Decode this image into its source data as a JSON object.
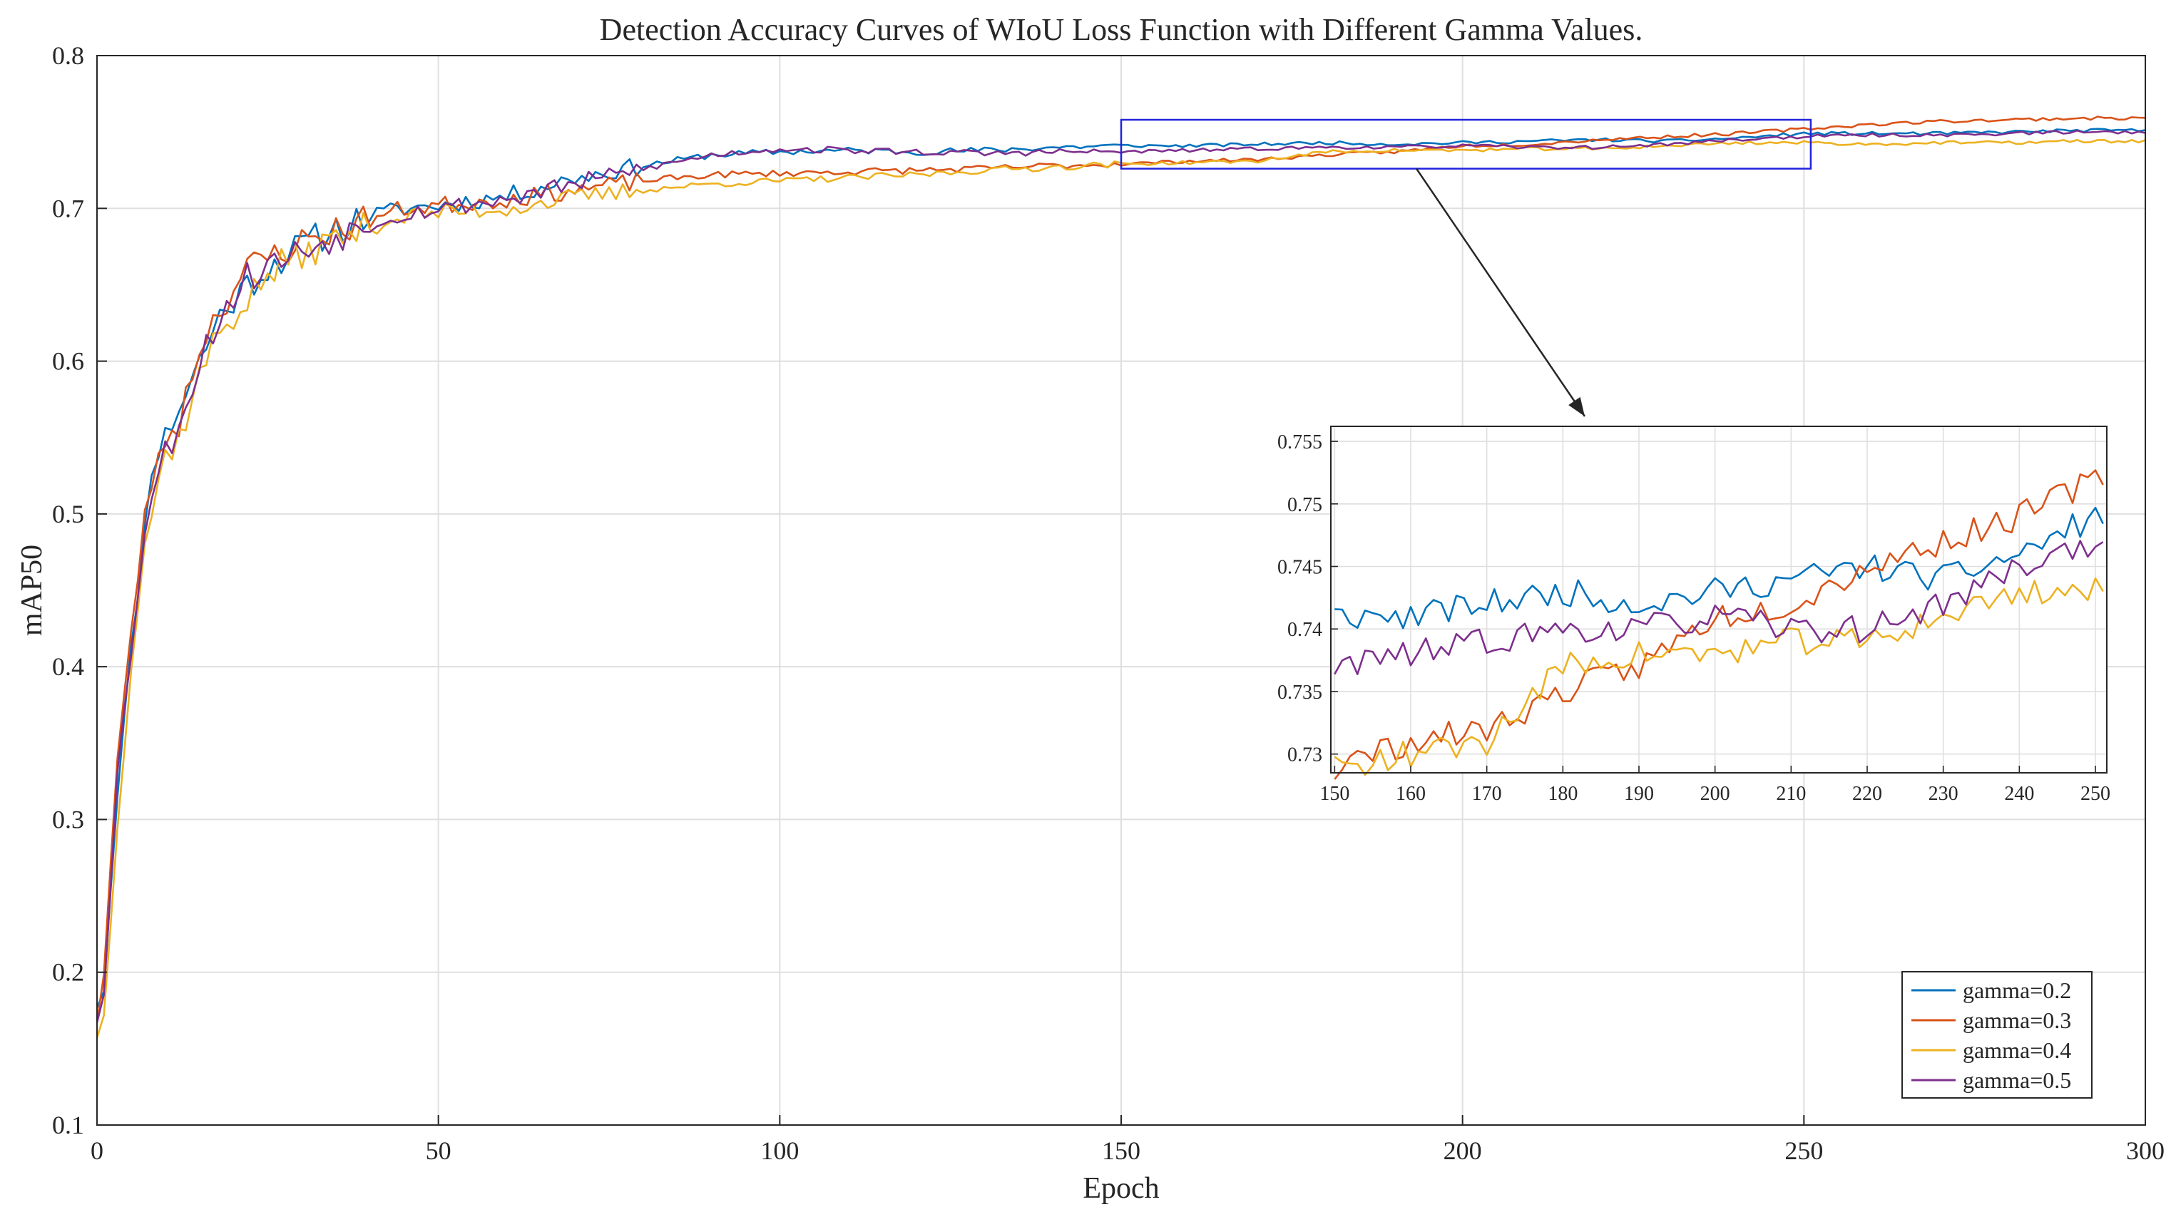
{
  "chart_data": [
    {
      "id": "main",
      "type": "line",
      "title": "Detection Accuracy Curves of WIoU Loss Function with Different Gamma Values.",
      "xlabel": "Epoch",
      "ylabel": "mAP50",
      "xlim": [
        0,
        300
      ],
      "ylim": [
        0.1,
        0.8
      ],
      "xticks": [
        0,
        50,
        100,
        150,
        200,
        250,
        300
      ],
      "xtick_labels": [
        "0",
        "50",
        "100",
        "150",
        "200",
        "250",
        "300"
      ],
      "yticks": [
        0.1,
        0.2,
        0.3,
        0.4,
        0.5,
        0.6,
        0.7,
        0.8
      ],
      "ytick_labels": [
        "0.1",
        "0.2",
        "0.3",
        "0.4",
        "0.5",
        "0.6",
        "0.7",
        "0.8"
      ],
      "grid": true,
      "legend_position": "bottom-right",
      "zoom_box": {
        "x": [
          150,
          251
        ],
        "y": [
          0.726,
          0.758
        ]
      },
      "series": [
        {
          "name": "gamma=0.2",
          "color": "#0072BD",
          "seed": 11,
          "anchors": [
            [
              0,
              0.18
            ],
            [
              1,
              0.19
            ],
            [
              3,
              0.32
            ],
            [
              5,
              0.41
            ],
            [
              7,
              0.49
            ],
            [
              8,
              0.53
            ],
            [
              10,
              0.55
            ],
            [
              12,
              0.57
            ],
            [
              15,
              0.6
            ],
            [
              18,
              0.63
            ],
            [
              22,
              0.65
            ],
            [
              26,
              0.665
            ],
            [
              30,
              0.675
            ],
            [
              35,
              0.687
            ],
            [
              40,
              0.695
            ],
            [
              45,
              0.7
            ],
            [
              50,
              0.702
            ],
            [
              60,
              0.708
            ],
            [
              70,
              0.72
            ],
            [
              80,
              0.728
            ],
            [
              90,
              0.735
            ],
            [
              100,
              0.737
            ],
            [
              110,
              0.738
            ],
            [
              120,
              0.737
            ],
            [
              130,
              0.738
            ],
            [
              140,
              0.74
            ],
            [
              150,
              0.741
            ],
            [
              160,
              0.741
            ],
            [
              170,
              0.742
            ],
            [
              180,
              0.743
            ],
            [
              190,
              0.742
            ],
            [
              200,
              0.743
            ],
            [
              210,
              0.744
            ],
            [
              220,
              0.745
            ],
            [
              230,
              0.744
            ],
            [
              240,
              0.746
            ],
            [
              250,
              0.749
            ],
            [
              260,
              0.749
            ],
            [
              270,
              0.749
            ],
            [
              280,
              0.75
            ],
            [
              290,
              0.751
            ],
            [
              300,
              0.751
            ]
          ]
        },
        {
          "name": "gamma=0.3",
          "color": "#D95319",
          "seed": 23,
          "anchors": [
            [
              0,
              0.17
            ],
            [
              1,
              0.2
            ],
            [
              3,
              0.34
            ],
            [
              5,
              0.42
            ],
            [
              7,
              0.5
            ],
            [
              8,
              0.52
            ],
            [
              10,
              0.55
            ],
            [
              12,
              0.56
            ],
            [
              15,
              0.61
            ],
            [
              18,
              0.635
            ],
            [
              22,
              0.66
            ],
            [
              26,
              0.67
            ],
            [
              30,
              0.678
            ],
            [
              35,
              0.686
            ],
            [
              40,
              0.693
            ],
            [
              45,
              0.7
            ],
            [
              50,
              0.702
            ],
            [
              60,
              0.706
            ],
            [
              70,
              0.712
            ],
            [
              80,
              0.718
            ],
            [
              90,
              0.722
            ],
            [
              100,
              0.723
            ],
            [
              110,
              0.724
            ],
            [
              120,
              0.725
            ],
            [
              130,
              0.726
            ],
            [
              140,
              0.728
            ],
            [
              150,
              0.729
            ],
            [
              160,
              0.731
            ],
            [
              170,
              0.732
            ],
            [
              180,
              0.735
            ],
            [
              190,
              0.737
            ],
            [
              200,
              0.741
            ],
            [
              210,
              0.742
            ],
            [
              220,
              0.745
            ],
            [
              230,
              0.747
            ],
            [
              240,
              0.749
            ],
            [
              250,
              0.752
            ],
            [
              260,
              0.755
            ],
            [
              270,
              0.757
            ],
            [
              280,
              0.758
            ],
            [
              290,
              0.759
            ],
            [
              300,
              0.759
            ]
          ]
        },
        {
          "name": "gamma=0.4",
          "color": "#EDB120",
          "seed": 37,
          "anchors": [
            [
              0,
              0.16
            ],
            [
              1,
              0.17
            ],
            [
              3,
              0.3
            ],
            [
              5,
              0.4
            ],
            [
              7,
              0.48
            ],
            [
              8,
              0.5
            ],
            [
              10,
              0.54
            ],
            [
              12,
              0.55
            ],
            [
              15,
              0.59
            ],
            [
              18,
              0.62
            ],
            [
              22,
              0.64
            ],
            [
              26,
              0.66
            ],
            [
              30,
              0.67
            ],
            [
              35,
              0.68
            ],
            [
              40,
              0.688
            ],
            [
              45,
              0.695
            ],
            [
              50,
              0.697
            ],
            [
              60,
              0.7
            ],
            [
              70,
              0.707
            ],
            [
              80,
              0.712
            ],
            [
              90,
              0.716
            ],
            [
              100,
              0.718
            ],
            [
              110,
              0.72
            ],
            [
              120,
              0.722
            ],
            [
              130,
              0.725
            ],
            [
              140,
              0.727
            ],
            [
              150,
              0.729
            ],
            [
              160,
              0.73
            ],
            [
              170,
              0.731
            ],
            [
              180,
              0.737
            ],
            [
              190,
              0.738
            ],
            [
              200,
              0.738
            ],
            [
              210,
              0.739
            ],
            [
              220,
              0.739
            ],
            [
              230,
              0.741
            ],
            [
              240,
              0.743
            ],
            [
              250,
              0.743
            ],
            [
              260,
              0.742
            ],
            [
              270,
              0.743
            ],
            [
              280,
              0.743
            ],
            [
              290,
              0.744
            ],
            [
              300,
              0.744
            ]
          ]
        },
        {
          "name": "gamma=0.5",
          "color": "#7E2F8E",
          "seed": 53,
          "anchors": [
            [
              0,
              0.17
            ],
            [
              1,
              0.19
            ],
            [
              3,
              0.33
            ],
            [
              5,
              0.41
            ],
            [
              7,
              0.49
            ],
            [
              8,
              0.51
            ],
            [
              10,
              0.54
            ],
            [
              12,
              0.56
            ],
            [
              15,
              0.6
            ],
            [
              18,
              0.63
            ],
            [
              22,
              0.655
            ],
            [
              26,
              0.665
            ],
            [
              30,
              0.672
            ],
            [
              35,
              0.682
            ],
            [
              40,
              0.69
            ],
            [
              45,
              0.697
            ],
            [
              50,
              0.7
            ],
            [
              60,
              0.706
            ],
            [
              70,
              0.716
            ],
            [
              80,
              0.726
            ],
            [
              90,
              0.735
            ],
            [
              100,
              0.739
            ],
            [
              110,
              0.738
            ],
            [
              120,
              0.737
            ],
            [
              130,
              0.736
            ],
            [
              140,
              0.737
            ],
            [
              150,
              0.737
            ],
            [
              160,
              0.738
            ],
            [
              170,
              0.739
            ],
            [
              180,
              0.74
            ],
            [
              190,
              0.74
            ],
            [
              200,
              0.741
            ],
            [
              210,
              0.74
            ],
            [
              220,
              0.74
            ],
            [
              230,
              0.742
            ],
            [
              240,
              0.745
            ],
            [
              250,
              0.747
            ],
            [
              260,
              0.748
            ],
            [
              270,
              0.748
            ],
            [
              280,
              0.749
            ],
            [
              290,
              0.75
            ],
            [
              300,
              0.75
            ]
          ]
        }
      ]
    },
    {
      "id": "inset",
      "type": "line",
      "title": "",
      "xlabel": "",
      "ylabel": "",
      "xlim": [
        149.5,
        251.5
      ],
      "ylim": [
        0.7285,
        0.7562
      ],
      "xticks": [
        150,
        160,
        170,
        180,
        190,
        200,
        210,
        220,
        230,
        240,
        250
      ],
      "xtick_labels": [
        "150",
        "160",
        "170",
        "180",
        "190",
        "200",
        "210",
        "220",
        "230",
        "240",
        "250"
      ],
      "yticks": [
        0.73,
        0.735,
        0.74,
        0.745,
        0.75,
        0.755
      ],
      "ytick_labels": [
        "0.73",
        "0.735",
        "0.74",
        "0.745",
        "0.75",
        "0.755"
      ],
      "grid": true,
      "series_ref": "main"
    }
  ]
}
